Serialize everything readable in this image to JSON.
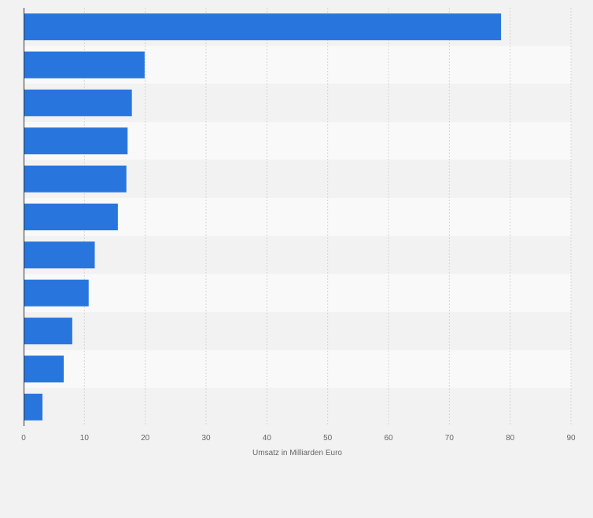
{
  "chart_data": {
    "type": "bar",
    "orientation": "horizontal",
    "values": [
      78.5,
      19.9,
      17.8,
      17.1,
      16.9,
      15.5,
      11.7,
      10.7,
      8.0,
      6.6,
      3.1
    ],
    "xlabel": "Umsatz in Milliarden Euro",
    "xlim": [
      0,
      90
    ],
    "xticks": [
      "0",
      "10",
      "20",
      "30",
      "40",
      "50",
      "60",
      "70",
      "80",
      "90"
    ],
    "grid": true,
    "bar_color": "#2876dd"
  }
}
